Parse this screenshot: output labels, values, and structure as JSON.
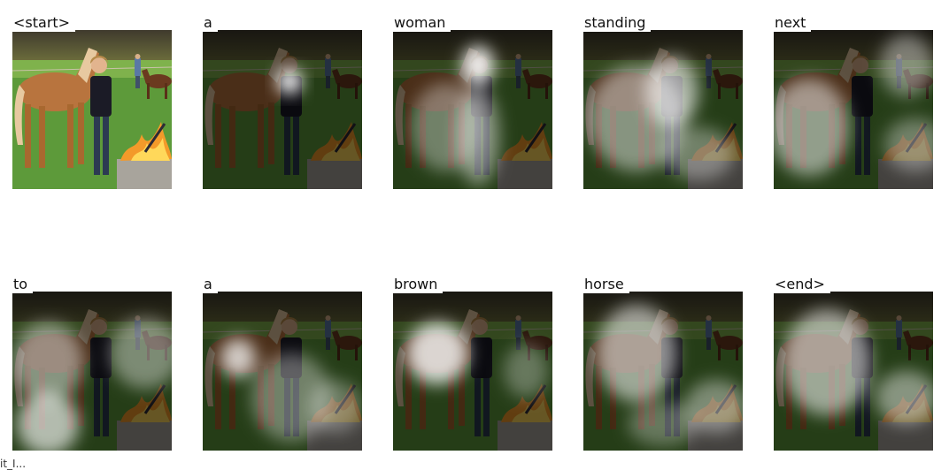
{
  "tokens": [
    "<start>",
    "a",
    "woman",
    "standing",
    "next",
    "to",
    "a",
    "brown",
    "horse",
    "<end>"
  ],
  "footer_text": "it_I..."
}
